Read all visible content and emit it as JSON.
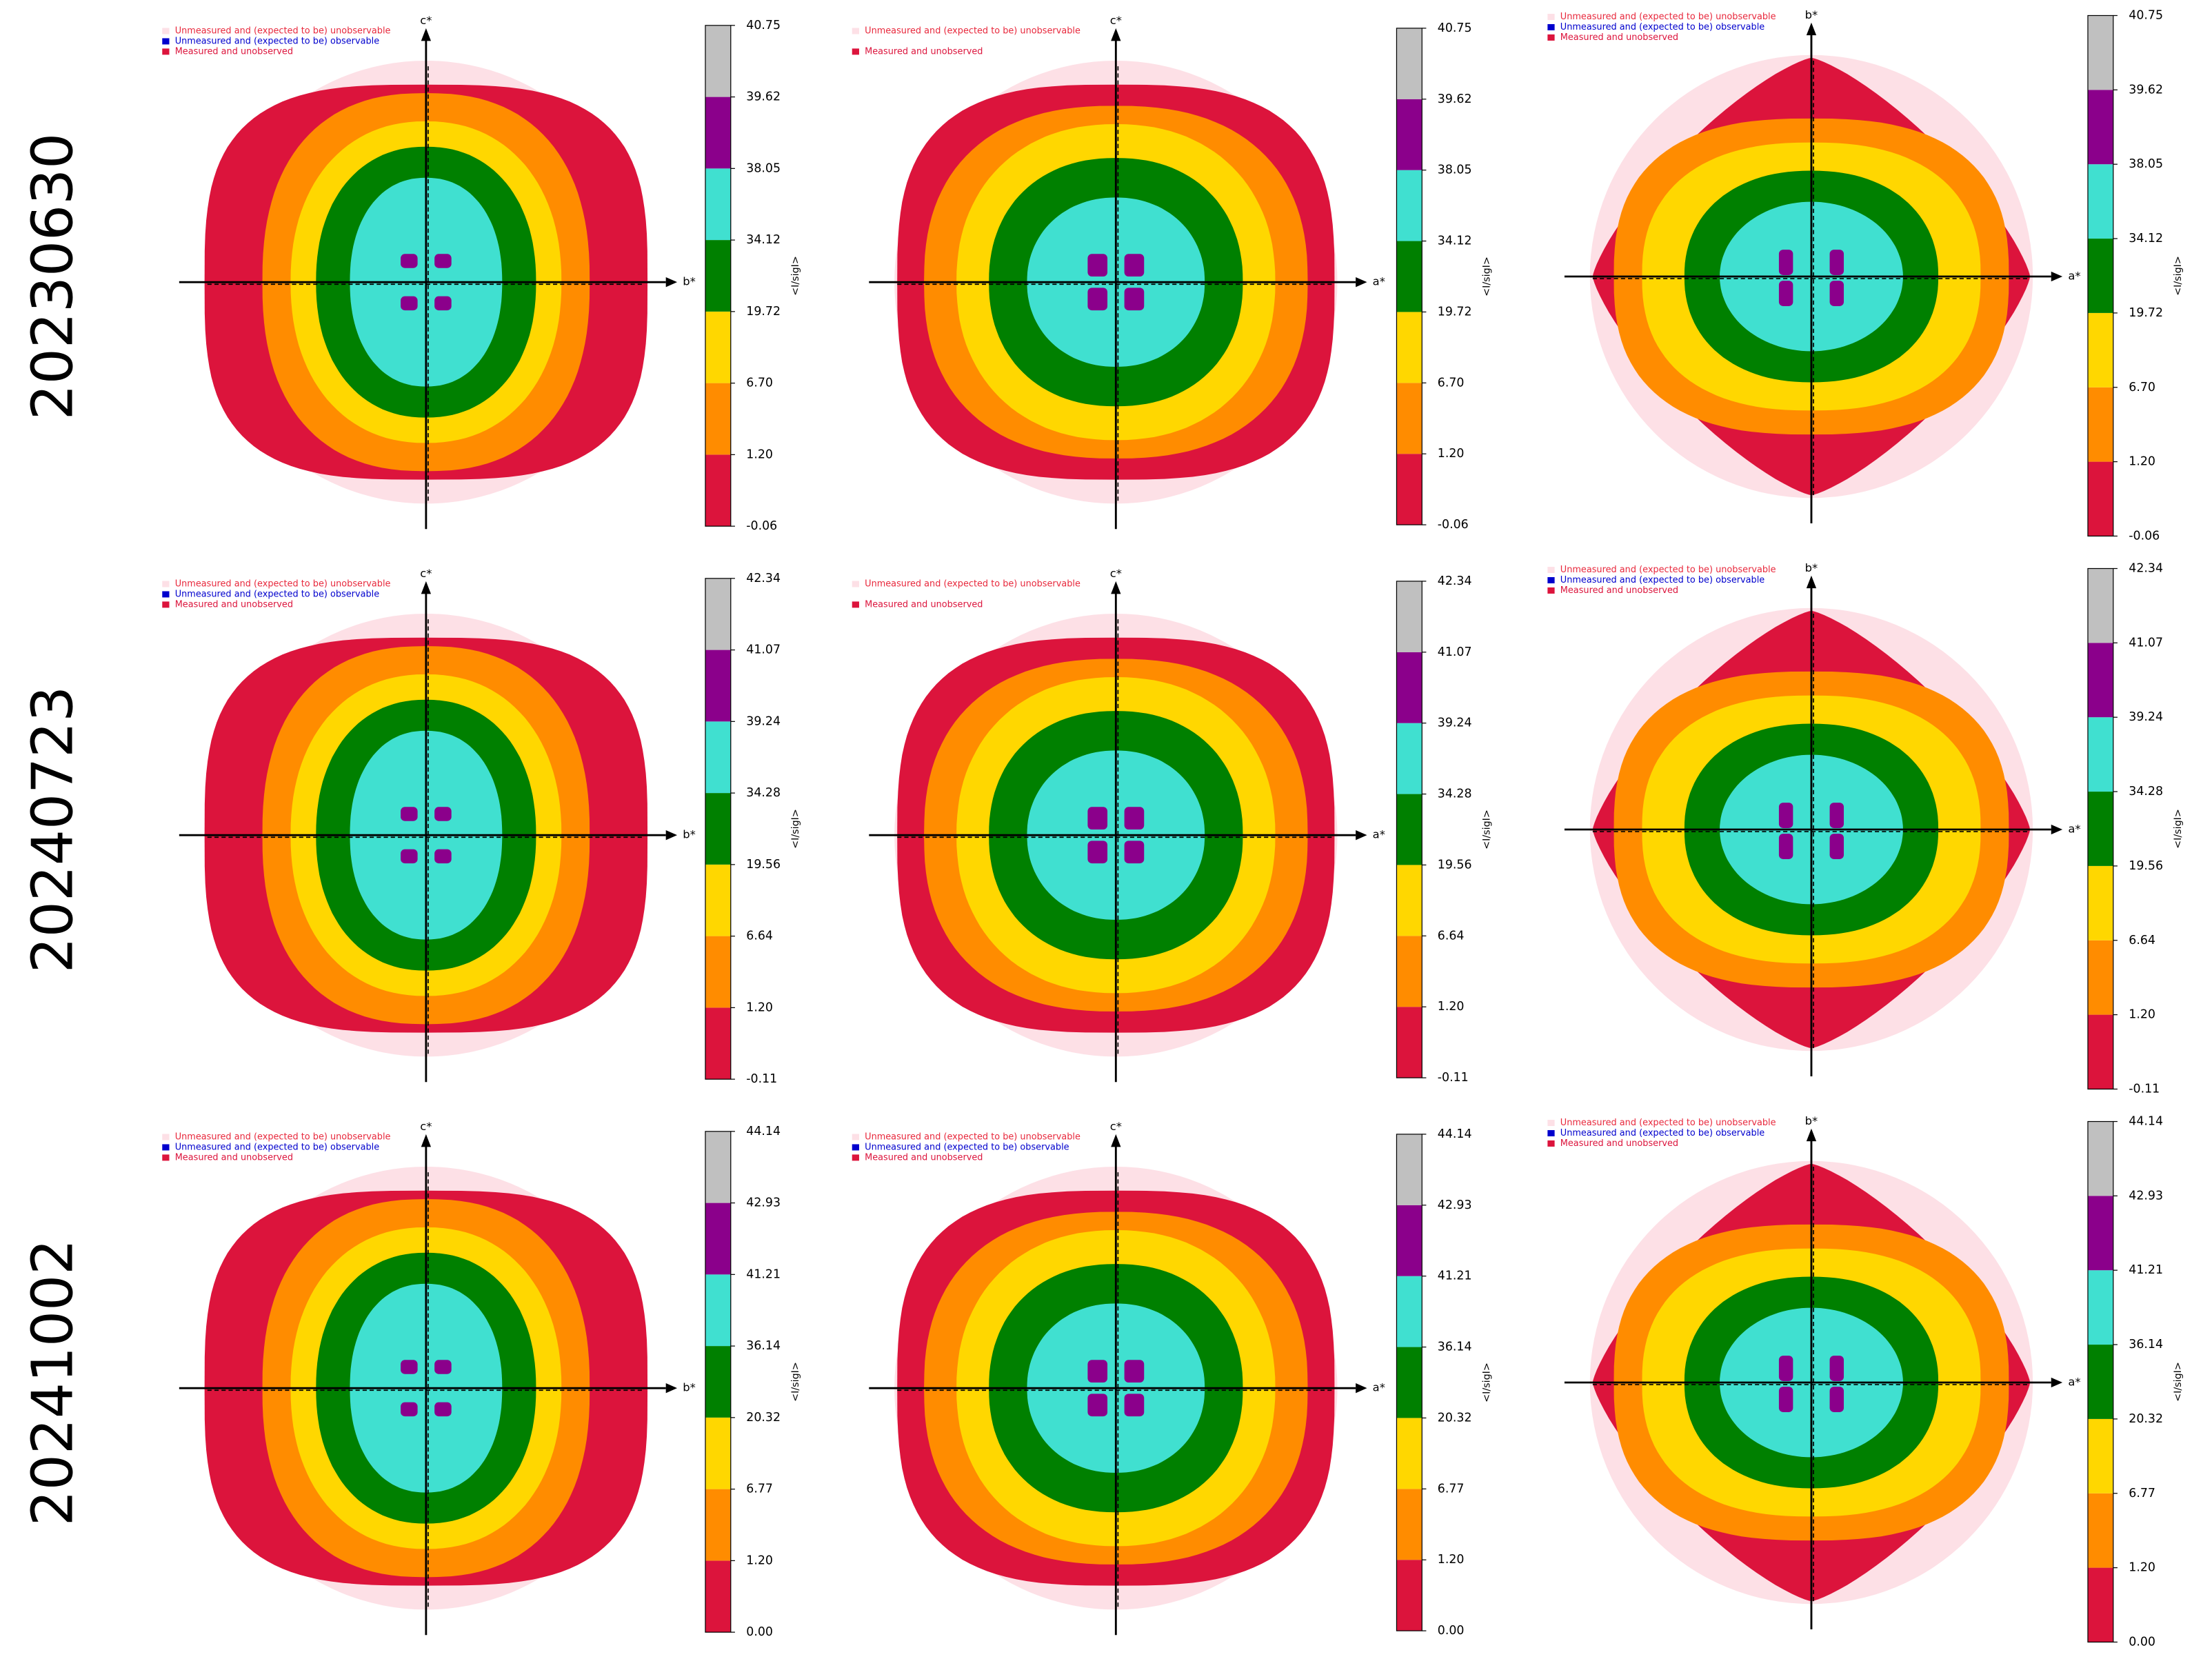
{
  "row_labels": [
    "20230630",
    "20240723",
    "20241002"
  ],
  "chart_data": [
    {
      "type": "slice",
      "x_label": "b*",
      "y_label": "c*",
      "legend": [
        {
          "name": "Unmeasured and (expected to be) unobservable",
          "color": "#fde0e6",
          "text_color": "#e8283c"
        },
        {
          "name": "Unmeasured and (expected to be) observable",
          "color": "#0000cd",
          "text_color": "#0000cd"
        },
        {
          "name": "Measured and unobserved",
          "color": "#dc143c",
          "text_color": "#dc143c"
        }
      ],
      "colorbar": {
        "label": "<I/sigI>",
        "colors": [
          "#dc143c",
          "#ff8c00",
          "#ffd700",
          "#008000",
          "#40e0d0",
          "#8b008b",
          "#c0c0c0"
        ],
        "ticks": [
          -0.06,
          {
            "value": 1.2,
            "label": "1.20"
          },
          {
            "value": 6.7,
            "label": "6.70"
          },
          19.72,
          34.12,
          38.05,
          39.62,
          40.75
        ]
      }
    },
    {
      "type": "slice",
      "x_label": "a*",
      "y_label": "c*",
      "legend": [
        {
          "name": "Unmeasured and (expected to be) unobservable",
          "color": "#fde0e6",
          "text_color": "#e8283c"
        },
        {
          "name": "Measured and unobserved",
          "color": "#dc143c",
          "text_color": "#dc143c"
        }
      ],
      "colorbar": {
        "label": "<I/sigI>",
        "colors": [
          "#dc143c",
          "#ff8c00",
          "#ffd700",
          "#008000",
          "#40e0d0",
          "#8b008b",
          "#c0c0c0"
        ],
        "ticks": [
          -0.06,
          {
            "value": 1.2,
            "label": "1.20"
          },
          {
            "value": 6.7,
            "label": "6.70"
          },
          19.72,
          34.12,
          38.05,
          39.62,
          40.75
        ]
      }
    },
    {
      "type": "slice",
      "x_label": "a*",
      "y_label": "b*",
      "legend": [
        {
          "name": "Unmeasured and (expected to be) unobservable",
          "color": "#fde0e6",
          "text_color": "#e8283c"
        },
        {
          "name": "Unmeasured and (expected to be) observable",
          "color": "#0000cd",
          "text_color": "#0000cd"
        },
        {
          "name": "Measured and unobserved",
          "color": "#dc143c",
          "text_color": "#dc143c"
        }
      ],
      "colorbar": {
        "label": "<I/sigI>",
        "colors": [
          "#dc143c",
          "#ff8c00",
          "#ffd700",
          "#008000",
          "#40e0d0",
          "#8b008b",
          "#c0c0c0"
        ],
        "ticks": [
          -0.06,
          {
            "value": 1.2,
            "label": "1.20"
          },
          {
            "value": 6.7,
            "label": "6.70"
          },
          19.72,
          34.12,
          38.05,
          39.62,
          40.75
        ]
      }
    },
    {
      "type": "slice",
      "x_label": "b*",
      "y_label": "c*",
      "legend": [
        {
          "name": "Unmeasured and (expected to be) unobservable",
          "color": "#fde0e6",
          "text_color": "#e8283c"
        },
        {
          "name": "Unmeasured and (expected to be) observable",
          "color": "#0000cd",
          "text_color": "#0000cd"
        },
        {
          "name": "Measured and unobserved",
          "color": "#dc143c",
          "text_color": "#dc143c"
        }
      ],
      "colorbar": {
        "label": "<I/sigI>",
        "colors": [
          "#dc143c",
          "#ff8c00",
          "#ffd700",
          "#008000",
          "#40e0d0",
          "#8b008b",
          "#c0c0c0"
        ],
        "ticks": [
          -0.11,
          {
            "value": 1.2,
            "label": "1.20"
          },
          6.64,
          19.56,
          34.28,
          39.24,
          41.07,
          42.34
        ]
      }
    },
    {
      "type": "slice",
      "x_label": "a*",
      "y_label": "c*",
      "legend": [
        {
          "name": "Unmeasured and (expected to be) unobservable",
          "color": "#fde0e6",
          "text_color": "#e8283c"
        },
        {
          "name": "Measured and unobserved",
          "color": "#dc143c",
          "text_color": "#dc143c"
        }
      ],
      "colorbar": {
        "label": "<I/sigI>",
        "colors": [
          "#dc143c",
          "#ff8c00",
          "#ffd700",
          "#008000",
          "#40e0d0",
          "#8b008b",
          "#c0c0c0"
        ],
        "ticks": [
          -0.11,
          {
            "value": 1.2,
            "label": "1.20"
          },
          6.64,
          19.56,
          34.28,
          39.24,
          41.07,
          42.34
        ]
      }
    },
    {
      "type": "slice",
      "x_label": "a*",
      "y_label": "b*",
      "legend": [
        {
          "name": "Unmeasured and (expected to be) unobservable",
          "color": "#fde0e6",
          "text_color": "#e8283c"
        },
        {
          "name": "Unmeasured and (expected to be) observable",
          "color": "#0000cd",
          "text_color": "#0000cd"
        },
        {
          "name": "Measured and unobserved",
          "color": "#dc143c",
          "text_color": "#dc143c"
        }
      ],
      "colorbar": {
        "label": "<I/sigI>",
        "colors": [
          "#dc143c",
          "#ff8c00",
          "#ffd700",
          "#008000",
          "#40e0d0",
          "#8b008b",
          "#c0c0c0"
        ],
        "ticks": [
          -0.11,
          {
            "value": 1.2,
            "label": "1.20"
          },
          6.64,
          19.56,
          34.28,
          39.24,
          41.07,
          42.34
        ]
      }
    },
    {
      "type": "slice",
      "x_label": "b*",
      "y_label": "c*",
      "legend": [
        {
          "name": "Unmeasured and (expected to be) unobservable",
          "color": "#fde0e6",
          "text_color": "#e8283c"
        },
        {
          "name": "Unmeasured and (expected to be) observable",
          "color": "#0000cd",
          "text_color": "#0000cd"
        },
        {
          "name": "Measured and unobserved",
          "color": "#dc143c",
          "text_color": "#dc143c"
        }
      ],
      "colorbar": {
        "label": "<I/sigI>",
        "colors": [
          "#dc143c",
          "#ff8c00",
          "#ffd700",
          "#008000",
          "#40e0d0",
          "#8b008b",
          "#c0c0c0"
        ],
        "ticks": [
          {
            "value": 0,
            "label": "0.00"
          },
          {
            "value": 1.2,
            "label": "1.20"
          },
          6.77,
          20.32,
          36.14,
          41.21,
          42.93,
          44.14
        ]
      }
    },
    {
      "type": "slice",
      "x_label": "a*",
      "y_label": "c*",
      "legend": [
        {
          "name": "Unmeasured and (expected to be) unobservable",
          "color": "#fde0e6",
          "text_color": "#e8283c"
        },
        {
          "name": "Unmeasured and (expected to be) observable",
          "color": "#0000cd",
          "text_color": "#0000cd"
        },
        {
          "name": "Measured and unobserved",
          "color": "#dc143c",
          "text_color": "#dc143c"
        }
      ],
      "colorbar": {
        "label": "<I/sigI>",
        "colors": [
          "#dc143c",
          "#ff8c00",
          "#ffd700",
          "#008000",
          "#40e0d0",
          "#8b008b",
          "#c0c0c0"
        ],
        "ticks": [
          {
            "value": 0,
            "label": "0.00"
          },
          {
            "value": 1.2,
            "label": "1.20"
          },
          6.77,
          20.32,
          36.14,
          41.21,
          42.93,
          44.14
        ]
      }
    },
    {
      "type": "slice",
      "x_label": "a*",
      "y_label": "b*",
      "legend": [
        {
          "name": "Unmeasured and (expected to be) unobservable",
          "color": "#fde0e6",
          "text_color": "#e8283c"
        },
        {
          "name": "Unmeasured and (expected to be) observable",
          "color": "#0000cd",
          "text_color": "#0000cd"
        },
        {
          "name": "Measured and unobserved",
          "color": "#dc143c",
          "text_color": "#dc143c"
        }
      ],
      "colorbar": {
        "label": "<I/sigI>",
        "colors": [
          "#dc143c",
          "#ff8c00",
          "#ffd700",
          "#008000",
          "#40e0d0",
          "#8b008b",
          "#c0c0c0"
        ],
        "ticks": [
          {
            "value": 0,
            "label": "0.00"
          },
          {
            "value": 1.2,
            "label": "1.20"
          },
          6.77,
          20.32,
          36.14,
          41.21,
          42.93,
          44.14
        ]
      }
    }
  ]
}
